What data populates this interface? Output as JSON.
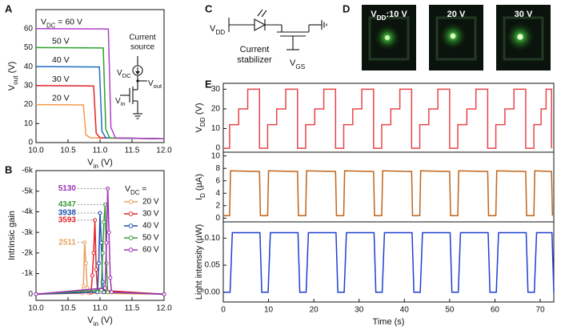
{
  "panels": [
    "A",
    "B",
    "C",
    "D",
    "E"
  ],
  "circuit_a": {
    "title": [
      "Current",
      "source"
    ],
    "vdc": [
      "V",
      "DC"
    ],
    "vout": [
      "V",
      "out"
    ],
    "vin": [
      "V",
      "in"
    ]
  },
  "circuit_c": {
    "vdd": [
      "V",
      "DD"
    ],
    "stabilizer": [
      "Current",
      "stabilizer"
    ],
    "vgs": [
      "V",
      "GS"
    ]
  },
  "photos": {
    "labels": [
      [
        "V",
        "DD",
        ":10 V"
      ],
      [
        "20 V"
      ],
      [
        "30 V"
      ]
    ]
  },
  "chart_data": [
    {
      "type": "line",
      "xlim": [
        10,
        12
      ],
      "xticks": [
        {
          "value": 10,
          "label": "10.0"
        },
        {
          "value": 10.5,
          "label": "10.5"
        },
        {
          "value": 11,
          "label": "11.0"
        },
        {
          "value": 11.5,
          "label": "11.5"
        },
        {
          "value": 12,
          "label": "12.0"
        }
      ],
      "ylim": [
        0,
        70
      ],
      "yticks": [
        0,
        10,
        20,
        30,
        40,
        50,
        60
      ],
      "x_label": [
        "V",
        "in",
        " (V)"
      ],
      "y_label": [
        "V",
        "out",
        " (V)"
      ],
      "series_labels": true,
      "label_prefix": [
        "V",
        "DC",
        " = "
      ],
      "series": [
        {
          "name": "20 V",
          "color": "#f39a4b",
          "x": [
            10,
            10.74,
            10.78,
            10.85,
            12
          ],
          "values": [
            20,
            19.8,
            4,
            2.5,
            2
          ]
        },
        {
          "name": "30 V",
          "color": "#e0242a",
          "x": [
            10,
            10.9,
            10.94,
            11.0,
            12
          ],
          "values": [
            30,
            29.8,
            5,
            2.5,
            2
          ]
        },
        {
          "name": "40 V",
          "color": "#1f6fc5",
          "x": [
            10,
            10.99,
            11.03,
            11.09,
            12
          ],
          "values": [
            40,
            39.8,
            6,
            2.5,
            2
          ]
        },
        {
          "name": "50 V",
          "color": "#2ca02c",
          "x": [
            10,
            11.05,
            11.09,
            11.15,
            12
          ],
          "values": [
            50,
            49.8,
            7,
            2.5,
            2
          ]
        },
        {
          "name": "60 V",
          "color": "#b23fc9",
          "x": [
            10,
            11.13,
            11.17,
            11.24,
            12
          ],
          "values": [
            60,
            59.8,
            8,
            2.5,
            2
          ]
        }
      ]
    },
    {
      "type": "line",
      "xlim": [
        10,
        12
      ],
      "xticks": [
        {
          "value": 10,
          "label": "10.0"
        },
        {
          "value": 10.5,
          "label": "10.5"
        },
        {
          "value": 11,
          "label": "11.0"
        },
        {
          "value": 11.5,
          "label": "11.5"
        },
        {
          "value": 12,
          "label": "12.0"
        }
      ],
      "ylim": [
        300,
        -6000
      ],
      "yticks": [
        {
          "value": -6000,
          "label": "-6k"
        },
        {
          "value": -5000,
          "label": "-5k"
        },
        {
          "value": -4000,
          "label": "-4k"
        },
        {
          "value": -3000,
          "label": "-3k"
        },
        {
          "value": -2000,
          "label": "-2k"
        },
        {
          "value": -1000,
          "label": "-1k"
        },
        0
      ],
      "x_label": [
        "V",
        "in",
        " (V)"
      ],
      "y_label": [
        "Intrinsic gain"
      ],
      "markers": true,
      "legend_title": [
        "V",
        "DC",
        " ="
      ],
      "series": [
        {
          "name": "20 V",
          "color": "#e8a060",
          "x": [
            10.0,
            10.72,
            10.74,
            10.76,
            10.78,
            10.8,
            10.82,
            12.0
          ],
          "values": [
            0,
            -50,
            -400,
            -2511,
            -1500,
            -300,
            -50,
            0
          ],
          "value_labels": [
            null,
            null,
            null,
            "2511",
            null,
            null,
            null,
            null
          ]
        },
        {
          "name": "30 V",
          "color": "#e0242a",
          "x": [
            10.0,
            10.86,
            10.88,
            10.9,
            10.92,
            10.94,
            10.96,
            12.0
          ],
          "values": [
            0,
            -80,
            -900,
            -2000,
            -3593,
            -1200,
            -200,
            0
          ],
          "value_labels": [
            null,
            null,
            null,
            null,
            "3593",
            null,
            null,
            null
          ]
        },
        {
          "name": "40 V",
          "color": "#1f4fb0",
          "x": [
            10.0,
            10.96,
            10.98,
            11.0,
            11.02,
            11.04,
            11.06,
            12.0
          ],
          "values": [
            0,
            -100,
            -1500,
            -3938,
            -2500,
            -600,
            -100,
            0
          ],
          "value_labels": [
            null,
            null,
            null,
            "3938",
            null,
            null,
            null,
            null
          ]
        },
        {
          "name": "50 V",
          "color": "#3a9a3a",
          "x": [
            10.0,
            11.02,
            11.04,
            11.06,
            11.08,
            11.1,
            11.12,
            12.0
          ],
          "values": [
            0,
            -200,
            -2000,
            -3500,
            -4347,
            -1500,
            -100,
            0
          ],
          "value_labels": [
            null,
            null,
            null,
            null,
            "4347",
            null,
            null,
            null
          ]
        },
        {
          "name": "60 V",
          "color": "#a02fb5",
          "x": [
            10.0,
            11.08,
            11.1,
            11.12,
            11.14,
            11.16,
            11.18,
            12.0
          ],
          "values": [
            0,
            -300,
            -2500,
            -5130,
            -3000,
            -800,
            -100,
            0
          ],
          "value_labels": [
            null,
            null,
            null,
            "5130",
            null,
            null,
            null,
            null
          ]
        }
      ]
    },
    {
      "type": "line",
      "xlim": [
        0,
        73
      ],
      "ylim": [
        -2,
        33
      ],
      "yticks": [
        0,
        10,
        20,
        30
      ],
      "y_label": [
        "V",
        "DD",
        " (V)"
      ],
      "series": [
        {
          "color": "#e8454a",
          "x": [
            0,
            1.4,
            1.4,
            3.4,
            3.4,
            5.4,
            5.4,
            8.0,
            8.0,
            9.8,
            9.8,
            11.8,
            11.8,
            13.8,
            13.8,
            16.4,
            16.4,
            18.2,
            18.2,
            20.2,
            20.2,
            22.2,
            22.2,
            24.8,
            24.8,
            26.6,
            26.6,
            28.6,
            28.6,
            30.6,
            30.6,
            33.2,
            33.2,
            35.0,
            35.0,
            37.0,
            37.0,
            39.0,
            39.0,
            41.6,
            41.6,
            43.4,
            43.4,
            45.4,
            45.4,
            47.4,
            47.4,
            50.0,
            50.0,
            51.8,
            51.8,
            53.8,
            53.8,
            55.8,
            55.8,
            58.4,
            58.4,
            60.2,
            60.2,
            62.2,
            62.2,
            64.2,
            64.2,
            66.8,
            66.8,
            68.6,
            68.6,
            70.2,
            70.2,
            71.3,
            71.3,
            72.5,
            72.5
          ],
          "values": [
            0,
            0,
            12,
            12,
            20,
            20,
            30,
            30,
            0,
            0,
            12,
            12,
            20,
            20,
            30,
            30,
            0,
            0,
            12,
            12,
            20,
            20,
            30,
            30,
            0,
            0,
            12,
            12,
            20,
            20,
            30,
            30,
            0,
            0,
            12,
            12,
            20,
            20,
            30,
            30,
            0,
            0,
            12,
            12,
            20,
            20,
            30,
            30,
            0,
            0,
            12,
            12,
            20,
            20,
            30,
            30,
            0,
            0,
            12,
            12,
            20,
            20,
            30,
            30,
            0,
            0,
            12,
            12,
            20,
            20,
            30,
            30,
            0
          ]
        }
      ]
    },
    {
      "type": "line",
      "xlim": [
        0,
        73
      ],
      "ylim": [
        -0.6,
        10.6
      ],
      "yticks": [
        0,
        2,
        4,
        6,
        8,
        10
      ],
      "y_label": [
        "I",
        "D",
        " (µA)"
      ],
      "series": [
        {
          "color": "#c0641a",
          "x": [
            0,
            1.4,
            1.6,
            8.0,
            8.2,
            9.8,
            10.0,
            16.4,
            16.6,
            18.2,
            18.4,
            24.8,
            25.0,
            26.6,
            26.8,
            33.2,
            33.4,
            35.0,
            35.2,
            41.6,
            41.8,
            43.4,
            43.6,
            50.0,
            50.2,
            51.8,
            52.0,
            58.4,
            58.6,
            60.2,
            60.4,
            66.8,
            67.0,
            68.6,
            68.8,
            72.5,
            72.7
          ],
          "values": [
            0.4,
            0.4,
            7.6,
            7.5,
            0.4,
            0.4,
            7.6,
            7.5,
            0.4,
            0.4,
            7.6,
            7.5,
            0.4,
            0.4,
            7.6,
            7.5,
            0.4,
            0.4,
            7.6,
            7.5,
            0.4,
            0.4,
            7.6,
            7.5,
            0.4,
            0.4,
            7.6,
            7.5,
            0.4,
            0.4,
            7.6,
            7.5,
            0.4,
            0.4,
            7.6,
            7.5,
            0.4
          ]
        }
      ]
    },
    {
      "type": "line",
      "xlim": [
        0,
        73
      ],
      "xticks": [
        0,
        10,
        20,
        30,
        40,
        50,
        60,
        70
      ],
      "ylim": [
        -0.018,
        0.13
      ],
      "yticks": [
        {
          "value": 0,
          "label": "0.00"
        },
        {
          "value": 0.05,
          "label": "0.05"
        },
        {
          "value": 0.1,
          "label": "0.10"
        }
      ],
      "x_label": [
        "Time (s)"
      ],
      "y_label": [
        "Light intensity (µW)"
      ],
      "series": [
        {
          "color": "#1f3fd0",
          "x": [
            0,
            1.5,
            2.0,
            8.1,
            8.5,
            9.9,
            10.4,
            16.5,
            16.9,
            18.3,
            18.8,
            24.9,
            25.3,
            26.7,
            27.2,
            33.3,
            33.7,
            35.1,
            35.6,
            41.7,
            42.1,
            43.5,
            44.0,
            50.1,
            50.5,
            51.9,
            52.4,
            58.5,
            58.9,
            60.3,
            60.8,
            66.9,
            67.3,
            68.7,
            69.2,
            72.6,
            73.0
          ],
          "values": [
            0,
            0,
            0.11,
            0.11,
            0,
            0,
            0.11,
            0.11,
            0,
            0,
            0.11,
            0.11,
            0,
            0,
            0.11,
            0.11,
            0,
            0,
            0.11,
            0.11,
            0,
            0,
            0.11,
            0.11,
            0,
            0,
            0.11,
            0.11,
            0,
            0,
            0.11,
            0.11,
            0,
            0,
            0.11,
            0.11,
            0
          ]
        }
      ]
    }
  ]
}
